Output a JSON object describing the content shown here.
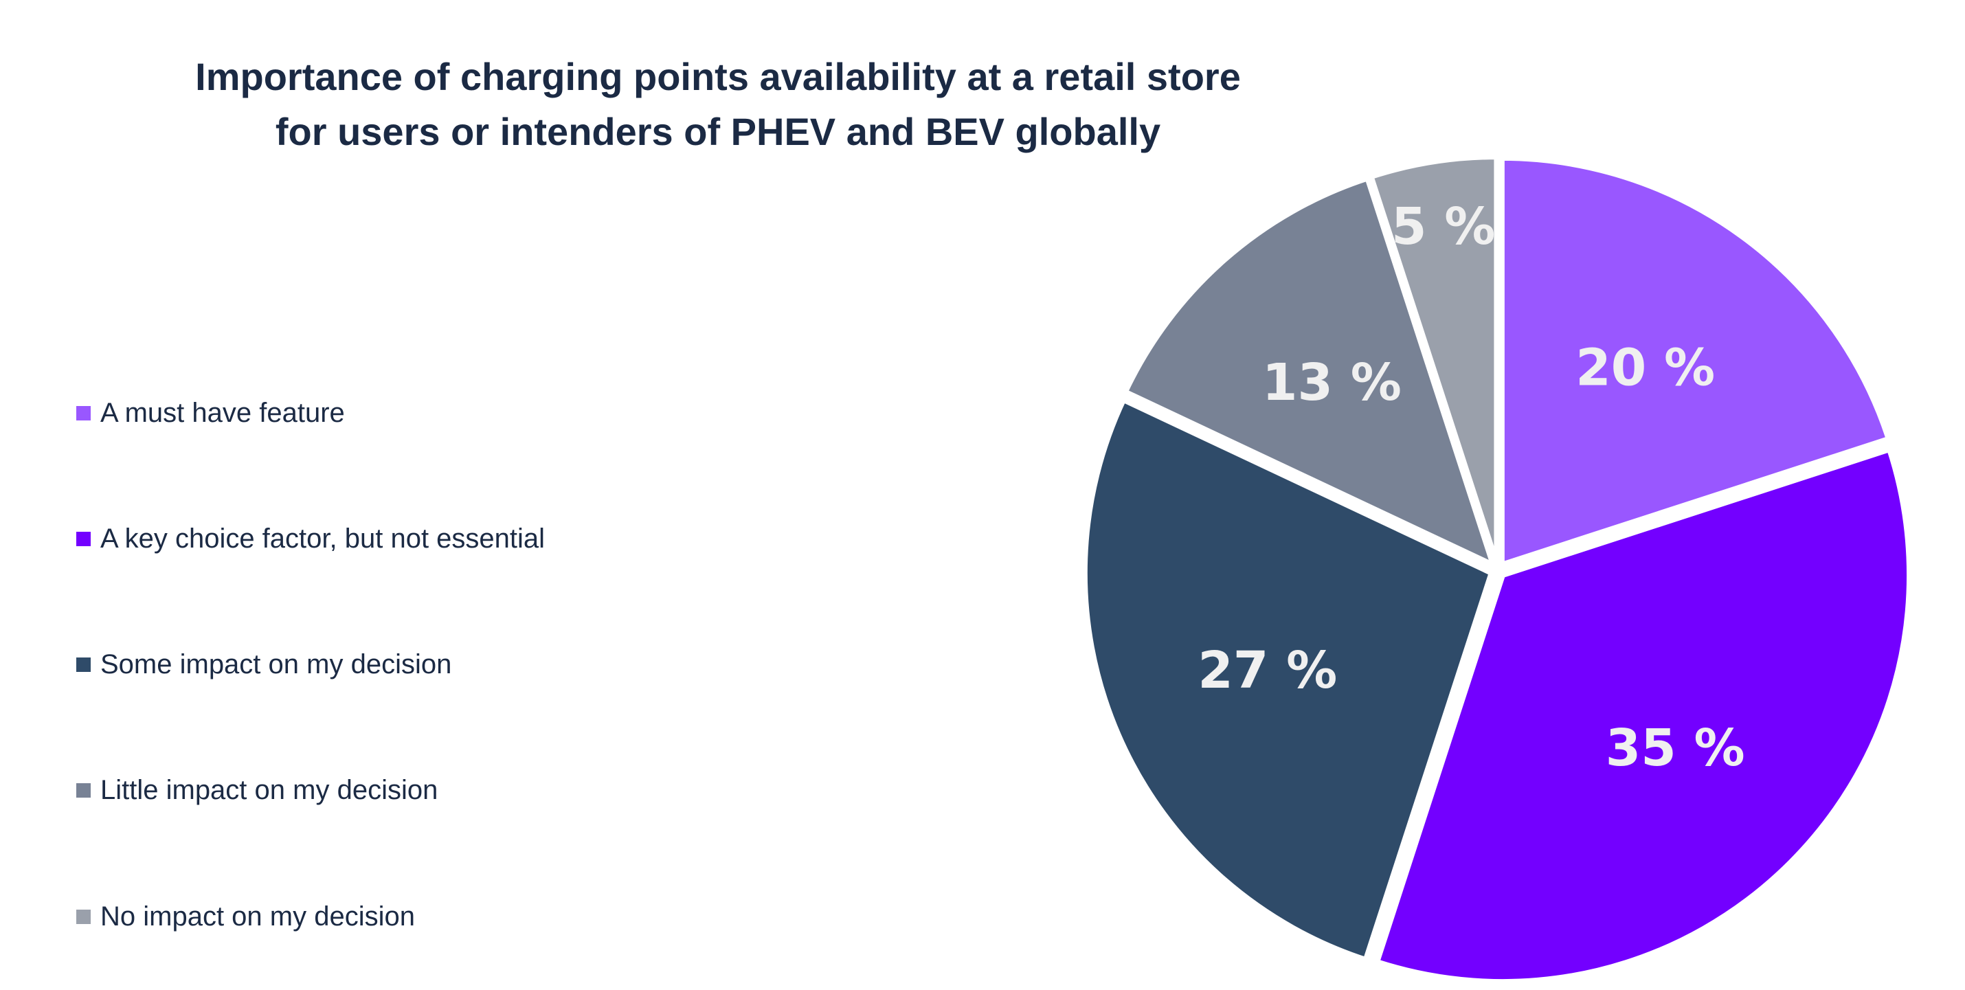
{
  "chart_data": {
    "type": "pie",
    "title": "Importance of charging points availability at a retail store for users or intenders of PHEV and BEV globally",
    "title_lines": [
      "Importance of charging points availability at a retail store",
      "for users or intenders of PHEV and BEV globally"
    ],
    "legend_position": "left",
    "slices": [
      {
        "name": "A must have feature",
        "value": 20,
        "label": "20 %",
        "color": "#9957ff"
      },
      {
        "name": "A key choice factor, but not essential",
        "value": 35,
        "label": "35 %",
        "color": "#7300ff"
      },
      {
        "name": "Some impact on my decision",
        "value": 27,
        "label": "27 %",
        "color": "#2f4b69"
      },
      {
        "name": "Little impact on my decision",
        "value": 13,
        "label": "13 %",
        "color": "#788295"
      },
      {
        "name": "No impact on my decision",
        "value": 5,
        "label": "5 %",
        "color": "#9aa0ab"
      }
    ]
  }
}
